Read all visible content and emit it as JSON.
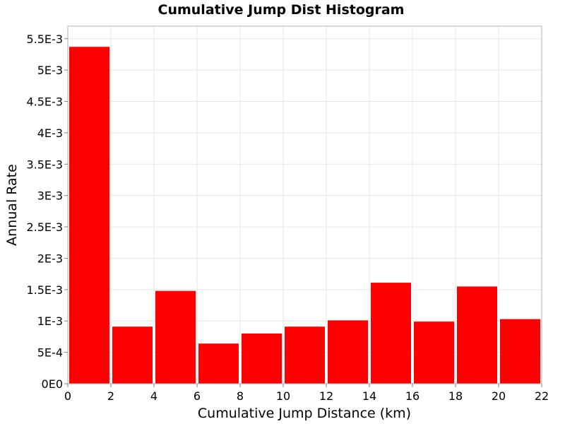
{
  "chart_data": {
    "type": "bar",
    "title": "Cumulative Jump Dist Histogram",
    "xlabel": "Cumulative Jump Distance (km)",
    "ylabel": "Annual Rate",
    "xlim": [
      0,
      22
    ],
    "ylim": [
      0,
      0.0057
    ],
    "bin_width": 2,
    "bins": [
      {
        "x0": 0,
        "x1": 2,
        "value": 0.00537
      },
      {
        "x0": 2,
        "x1": 4,
        "value": 0.00091
      },
      {
        "x0": 4,
        "x1": 6,
        "value": 0.00148
      },
      {
        "x0": 6,
        "x1": 8,
        "value": 0.00064
      },
      {
        "x0": 8,
        "x1": 10,
        "value": 0.0008
      },
      {
        "x0": 10,
        "x1": 12,
        "value": 0.00091
      },
      {
        "x0": 12,
        "x1": 14,
        "value": 0.00101
      },
      {
        "x0": 14,
        "x1": 16,
        "value": 0.00161
      },
      {
        "x0": 16,
        "x1": 18,
        "value": 0.00099
      },
      {
        "x0": 18,
        "x1": 20,
        "value": 0.00155
      },
      {
        "x0": 20,
        "x1": 22,
        "value": 0.00103
      }
    ],
    "x_ticks": [
      0,
      2,
      4,
      6,
      8,
      10,
      12,
      14,
      16,
      18,
      20,
      22
    ],
    "x_tick_labels": [
      "0",
      "2",
      "4",
      "6",
      "8",
      "10",
      "12",
      "14",
      "16",
      "18",
      "20",
      "22"
    ],
    "y_ticks": [
      0,
      0.0005,
      0.001,
      0.0015,
      0.002,
      0.0025,
      0.003,
      0.0035,
      0.004,
      0.0045,
      0.005,
      0.0055
    ],
    "y_tick_labels": [
      "0E0",
      "5E-4",
      "1E-3",
      "1.5E-3",
      "2E-3",
      "2.5E-3",
      "3E-3",
      "3.5E-3",
      "4E-3",
      "4.5E-3",
      "5E-3",
      "5.5E-3"
    ],
    "grid": true,
    "colors": {
      "bar": "#ff0000",
      "grid": "#e6e6e6",
      "frame": "#b0b0b0"
    }
  }
}
